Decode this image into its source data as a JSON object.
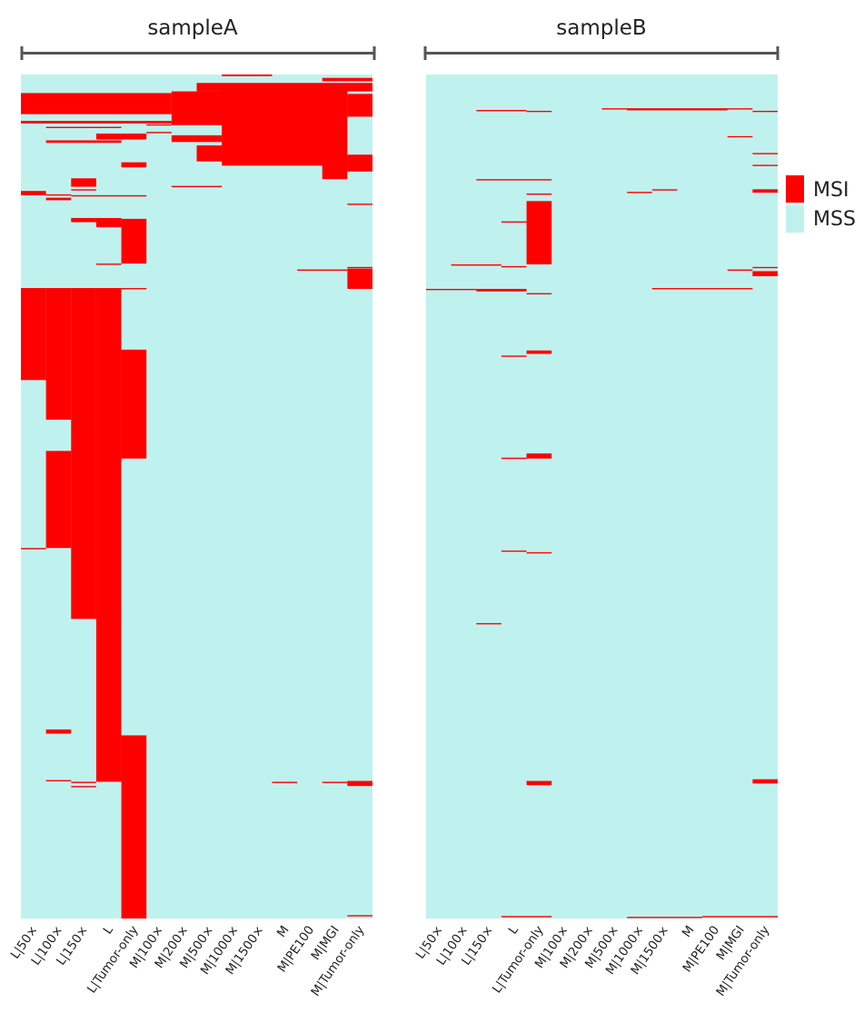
{
  "chart_data": {
    "type": "heatmap",
    "row_count": 1000,
    "columns": [
      "L|50X",
      "L|100X",
      "L|150X",
      "L",
      "L|Tumor-only",
      "M|100X",
      "M|200X",
      "M|500X",
      "M|1000X",
      "M|1500X",
      "M",
      "M|PE100",
      "M|MGI",
      "M|Tumor-only"
    ],
    "tick_labels": [
      "L|50×",
      "L|100×",
      "L|150×",
      "L",
      "L|Tumor-only",
      "M|100×",
      "M|200×",
      "M|500×",
      "M|1000×",
      "M|1500×",
      "M",
      "M|PE100",
      "M|MGI",
      "M|Tumor-only"
    ],
    "legend": [
      {
        "label": "MSI",
        "color": "#ff0000"
      },
      {
        "label": "MSS",
        "color": "#bff2ee"
      }
    ],
    "colors": {
      "msi": "#ff0000",
      "mss": "#bff2ee",
      "bracket": "#555555"
    },
    "panels": [
      {
        "title": "sampleA",
        "msi_blocks": [
          {
            "cols": [
              0,
              0
            ],
            "rows": [
              253,
              362
            ]
          },
          {
            "cols": [
              1,
              1
            ],
            "rows": [
              253,
              409
            ]
          },
          {
            "cols": [
              1,
              1
            ],
            "rows": [
              446,
              561
            ]
          },
          {
            "cols": [
              2,
              2
            ],
            "rows": [
              253,
              645
            ]
          },
          {
            "cols": [
              3,
              3
            ],
            "rows": [
              253,
              838
            ]
          },
          {
            "cols": [
              4,
              4
            ],
            "rows": [
              326,
              455
            ]
          },
          {
            "cols": [
              4,
              4
            ],
            "rows": [
              783,
              1000
            ]
          },
          {
            "cols": [
              4,
              4
            ],
            "rows": [
              171,
              224
            ]
          },
          {
            "cols": [
              3,
              3
            ],
            "rows": [
              170,
              181
            ]
          },
          {
            "cols": [
              2,
              2
            ],
            "rows": [
              170,
              175
            ]
          },
          {
            "cols": [
              2,
              2
            ],
            "rows": [
              123,
              133
            ]
          },
          {
            "cols": [
              1,
              1
            ],
            "rows": [
              146,
              149
            ]
          },
          {
            "cols": [
              0,
              0
            ],
            "rows": [
              138,
              143
            ]
          },
          {
            "cols": [
              0,
              5
            ],
            "rows": [
              22,
              47
            ]
          },
          {
            "cols": [
              0,
              5
            ],
            "rows": [
              55,
              58
            ]
          },
          {
            "cols": [
              3,
              4
            ],
            "rows": [
              70,
              77
            ]
          },
          {
            "cols": [
              4,
              4
            ],
            "rows": [
              104,
              110
            ]
          },
          {
            "cols": [
              1,
              3
            ],
            "rows": [
              78,
              81
            ]
          },
          {
            "cols": [
              6,
              8
            ],
            "rows": [
              20,
              60
            ]
          },
          {
            "cols": [
              6,
              7
            ],
            "rows": [
              72,
              80
            ]
          },
          {
            "cols": [
              7,
              13
            ],
            "rows": [
              10,
              20
            ]
          },
          {
            "cols": [
              8,
              12
            ],
            "rows": [
              15,
              108
            ]
          },
          {
            "cols": [
              7,
              8
            ],
            "rows": [
              84,
              103
            ]
          },
          {
            "cols": [
              12,
              12
            ],
            "rows": [
              100,
              124
            ]
          },
          {
            "cols": [
              13,
              13
            ],
            "rows": [
              95,
              115
            ]
          },
          {
            "cols": [
              13,
              13
            ],
            "rows": [
              23,
              50
            ]
          },
          {
            "cols": [
              8,
              9
            ],
            "rows": [
              0,
              2
            ]
          },
          {
            "cols": [
              12,
              13
            ],
            "rows": [
              4,
              8
            ]
          },
          {
            "cols": [
              13,
              13
            ],
            "rows": [
              230,
              254
            ]
          },
          {
            "cols": [
              1,
              1
            ],
            "rows": [
              776,
              781
            ]
          },
          {
            "cols": [
              13,
              13
            ],
            "rows": [
              837,
              843
            ]
          }
        ],
        "thin_lines": [
          {
            "cols": [
              0,
              4
            ],
            "row": 25
          },
          {
            "cols": [
              0,
              4
            ],
            "row": 31
          },
          {
            "cols": [
              1,
              3
            ],
            "row": 62
          },
          {
            "cols": [
              1,
              1
            ],
            "row": 142
          },
          {
            "cols": [
              2,
              4
            ],
            "row": 143
          },
          {
            "cols": [
              5,
              5
            ],
            "row": 59
          },
          {
            "cols": [
              5,
              5
            ],
            "row": 68
          },
          {
            "cols": [
              6,
              7
            ],
            "row": 132
          },
          {
            "cols": [
              2,
              2
            ],
            "row": 136
          },
          {
            "cols": [
              4,
              4
            ],
            "row": 196
          },
          {
            "cols": [
              3,
              3
            ],
            "row": 224
          },
          {
            "cols": [
              13,
              13
            ],
            "row": 153
          },
          {
            "cols": [
              11,
              12
            ],
            "row": 231
          },
          {
            "cols": [
              4,
              4
            ],
            "row": 253
          },
          {
            "cols": [
              0,
              0
            ],
            "row": 257
          },
          {
            "cols": [
              0,
              0
            ],
            "row": 561
          },
          {
            "cols": [
              1,
              1
            ],
            "row": 836
          },
          {
            "cols": [
              2,
              2
            ],
            "row": 838
          },
          {
            "cols": [
              2,
              2
            ],
            "row": 843
          },
          {
            "cols": [
              10,
              10
            ],
            "row": 838
          },
          {
            "cols": [
              12,
              12
            ],
            "row": 838
          },
          {
            "cols": [
              13,
              13
            ],
            "row": 996
          },
          {
            "cols": [
              13,
              13
            ],
            "row": 228
          }
        ]
      },
      {
        "title": "sampleB",
        "msi_blocks": [
          {
            "cols": [
              4,
              4
            ],
            "rows": [
              150,
              225
            ]
          },
          {
            "cols": [
              4,
              4
            ],
            "rows": [
              327,
              331
            ]
          },
          {
            "cols": [
              4,
              4
            ],
            "rows": [
              449,
              455
            ]
          },
          {
            "cols": [
              4,
              4
            ],
            "rows": [
              837,
              842
            ]
          },
          {
            "cols": [
              13,
              13
            ],
            "rows": [
              136,
              140
            ]
          },
          {
            "cols": [
              13,
              13
            ],
            "rows": [
              233,
              239
            ]
          },
          {
            "cols": [
              13,
              13
            ],
            "rows": [
              835,
              840
            ]
          },
          {
            "cols": [
              2,
              3
            ],
            "rows": [
              254,
              257
            ]
          }
        ],
        "thin_lines": [
          {
            "cols": [
              2,
              3
            ],
            "row": 42
          },
          {
            "cols": [
              4,
              4
            ],
            "row": 43
          },
          {
            "cols": [
              7,
              12
            ],
            "row": 40
          },
          {
            "cols": [
              8,
              11
            ],
            "row": 41
          },
          {
            "cols": [
              13,
              13
            ],
            "row": 43
          },
          {
            "cols": [
              12,
              12
            ],
            "row": 73
          },
          {
            "cols": [
              13,
              13
            ],
            "row": 93
          },
          {
            "cols": [
              13,
              13
            ],
            "row": 107
          },
          {
            "cols": [
              2,
              4
            ],
            "row": 124
          },
          {
            "cols": [
              8,
              8
            ],
            "row": 139
          },
          {
            "cols": [
              9,
              9
            ],
            "row": 136
          },
          {
            "cols": [
              3,
              3
            ],
            "row": 174
          },
          {
            "cols": [
              1,
              2
            ],
            "row": 225
          },
          {
            "cols": [
              3,
              3
            ],
            "row": 227
          },
          {
            "cols": [
              4,
              4
            ],
            "row": 141
          },
          {
            "cols": [
              12,
              12
            ],
            "row": 231
          },
          {
            "cols": [
              13,
              13
            ],
            "row": 228
          },
          {
            "cols": [
              0,
              1
            ],
            "row": 254
          },
          {
            "cols": [
              9,
              12
            ],
            "row": 253
          },
          {
            "cols": [
              4,
              4
            ],
            "row": 259
          },
          {
            "cols": [
              3,
              3
            ],
            "row": 333
          },
          {
            "cols": [
              3,
              3
            ],
            "row": 454
          },
          {
            "cols": [
              3,
              3
            ],
            "row": 564
          },
          {
            "cols": [
              4,
              4
            ],
            "row": 566
          },
          {
            "cols": [
              2,
              2
            ],
            "row": 650
          },
          {
            "cols": [
              3,
              4
            ],
            "row": 997
          },
          {
            "cols": [
              8,
              10
            ],
            "row": 998
          },
          {
            "cols": [
              11,
              13
            ],
            "row": 997
          }
        ]
      }
    ]
  }
}
